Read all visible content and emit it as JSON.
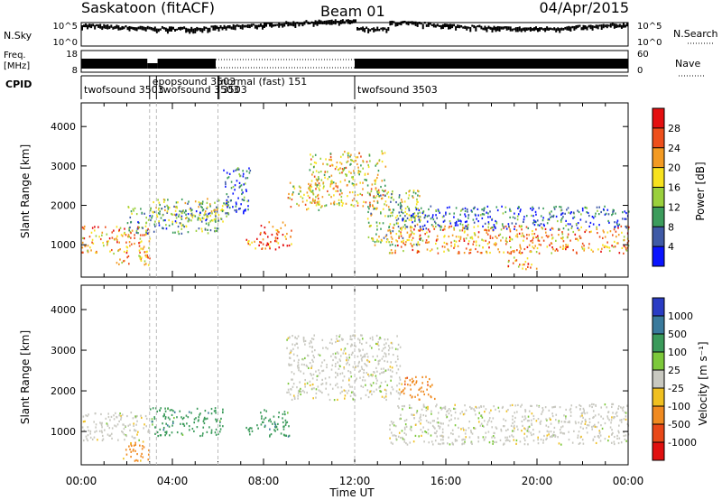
{
  "header": {
    "station": "Saskatoon (fitACF)",
    "beam": "Beam 01",
    "date": "04/Apr/2015"
  },
  "noise_panel": {
    "left_label": "N.Sky",
    "right_label": "N.Search",
    "left_ticks": [
      "10^5",
      "10^0"
    ],
    "right_ticks": [
      "10^5",
      "10^0"
    ]
  },
  "freq_panel": {
    "left_label_1": "Freq.",
    "left_label_2": "[MHz]",
    "left_ticks": [
      "18",
      "8"
    ],
    "right_ticks": [
      "60",
      "0"
    ],
    "right_label": "Nave"
  },
  "cpid": {
    "label": "CPID",
    "segments": [
      {
        "text": "twofsound 3503",
        "start_h": 0.0
      },
      {
        "text": "epopsound 3503",
        "start_h": 3.0
      },
      {
        "text": "twofsound 3503",
        "start_h": 3.3
      },
      {
        "text": "normal (fast) 151",
        "start_h": 6.0
      },
      {
        "text": "3503",
        "start_h": 6.05
      },
      {
        "text": "twofsound 3503",
        "start_h": 12.0
      }
    ]
  },
  "x_axis": {
    "label": "Time UT",
    "ticks": [
      "00:00",
      "04:00",
      "08:00",
      "12:00",
      "16:00",
      "20:00",
      "00:00"
    ]
  },
  "power_colorbar": {
    "label": "Power [dB]",
    "ticks": [
      "4",
      "8",
      "12",
      "16",
      "20",
      "24",
      "28"
    ],
    "colors": [
      "#0a14ff",
      "#3f5aa6",
      "#3c9c5c",
      "#9ad03c",
      "#f7e21e",
      "#f39a22",
      "#ee4f1c",
      "#e40f10"
    ]
  },
  "velocity_colorbar": {
    "label": "Velocity [m s⁻¹]",
    "ticks": [
      "1000",
      "500",
      "100",
      "25",
      "-25",
      "-100",
      "-500",
      "-1000"
    ],
    "colors": [
      "#2a3cc4",
      "#3a7a9c",
      "#3a9a5a",
      "#7cc83a",
      "#c8c8c0",
      "#f0c020",
      "#f08a20",
      "#e84818",
      "#e01010"
    ]
  },
  "power_panel": {
    "ylabel": "Slant Range [km]",
    "yticks": [
      "1000",
      "2000",
      "3000",
      "4000"
    ]
  },
  "velocity_panel": {
    "ylabel": "Slant Range [km]",
    "yticks": [
      "1000",
      "2000",
      "3000",
      "4000"
    ]
  },
  "chart_data": [
    {
      "type": "heatmap",
      "title": "Power",
      "xlabel": "Time UT",
      "ylabel": "Slant Range [km]",
      "xlim": [
        0,
        24
      ],
      "ylim": [
        180,
        4600
      ],
      "colorbar_label": "Power [dB]",
      "color_levels_dB": [
        4,
        8,
        12,
        16,
        20,
        24,
        28
      ],
      "regions": [
        {
          "t": [
            0.0,
            3.0
          ],
          "range_km": [
            800,
            1500
          ],
          "power_dB": 24
        },
        {
          "t": [
            1.5,
            3.0
          ],
          "range_km": [
            500,
            800
          ],
          "power_dB": 24
        },
        {
          "t": [
            2.0,
            6.0
          ],
          "range_km": [
            1300,
            2000
          ],
          "power_dB": 12
        },
        {
          "t": [
            3.0,
            6.5
          ],
          "range_km": [
            1600,
            2200
          ],
          "power_dB": 16
        },
        {
          "t": [
            6.2,
            7.4
          ],
          "range_km": [
            1800,
            3000
          ],
          "power_dB": 8
        },
        {
          "t": [
            7.2,
            7.8
          ],
          "range_km": [
            900,
            1200
          ],
          "power_dB": 24
        },
        {
          "t": [
            7.8,
            9.2
          ],
          "range_km": [
            900,
            1600
          ],
          "power_dB": 28
        },
        {
          "t": [
            9.0,
            10.5
          ],
          "range_km": [
            1900,
            2600
          ],
          "power_dB": 20
        },
        {
          "t": [
            10.0,
            13.4
          ],
          "range_km": [
            2000,
            3400
          ],
          "power_dB": 20
        },
        {
          "t": [
            12.5,
            15.0
          ],
          "range_km": [
            1000,
            2400
          ],
          "power_dB": 16
        },
        {
          "t": [
            13.5,
            24.0
          ],
          "range_km": [
            800,
            1500
          ],
          "power_dB": 24
        },
        {
          "t": [
            14.0,
            24.0
          ],
          "range_km": [
            1400,
            2000
          ],
          "power_dB": 8
        },
        {
          "t": [
            18.6,
            20.0
          ],
          "range_km": [
            400,
            700
          ],
          "power_dB": 24
        }
      ]
    },
    {
      "type": "heatmap",
      "title": "Velocity",
      "xlabel": "Time UT",
      "ylabel": "Slant Range [km]",
      "xlim": [
        0,
        24
      ],
      "ylim": [
        180,
        4600
      ],
      "colorbar_label": "Velocity [m s⁻¹]",
      "color_levels_ms": [
        1000,
        500,
        100,
        25,
        -25,
        -100,
        -500,
        -1000
      ],
      "regions": [
        {
          "t": [
            0.0,
            3.0
          ],
          "range_km": [
            800,
            1500
          ],
          "velocity_ms": 0
        },
        {
          "t": [
            1.8,
            3.0
          ],
          "range_km": [
            300,
            800
          ],
          "velocity_ms": -300
        },
        {
          "t": [
            3.0,
            6.2
          ],
          "range_km": [
            900,
            1600
          ],
          "velocity_ms": 100
        },
        {
          "t": [
            7.2,
            7.8
          ],
          "range_km": [
            900,
            1200
          ],
          "velocity_ms": 100
        },
        {
          "t": [
            7.8,
            9.2
          ],
          "range_km": [
            900,
            1600
          ],
          "velocity_ms": 100
        },
        {
          "t": [
            9.0,
            14.0
          ],
          "range_km": [
            1800,
            3400
          ],
          "velocity_ms": 0
        },
        {
          "t": [
            13.5,
            24.0
          ],
          "range_km": [
            700,
            1700
          ],
          "velocity_ms": 0
        },
        {
          "t": [
            14.0,
            15.5
          ],
          "range_km": [
            1800,
            2400
          ],
          "velocity_ms": -200
        }
      ]
    }
  ]
}
